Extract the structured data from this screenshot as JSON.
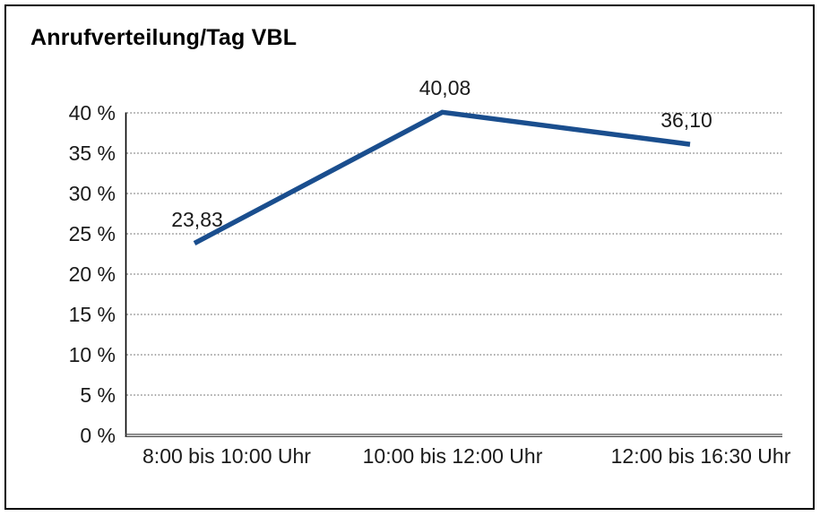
{
  "window": {
    "background_color": "#ffffff",
    "frame_border_color": "#000000"
  },
  "chart_data": {
    "type": "line",
    "title": "Anrufverteilung/Tag VBL",
    "categories": [
      "8:00 bis 10:00 Uhr",
      "10:00 bis 12:00 Uhr",
      "12:00 bis 16:30 Uhr"
    ],
    "series": [
      {
        "name": "Anrufverteilung/Tag VBL",
        "values": [
          23.83,
          40.08,
          36.1
        ],
        "color": "#1a4e8e"
      }
    ],
    "value_labels": [
      "23,83",
      "40,08",
      "36,10"
    ],
    "xlabel": "",
    "ylabel": "",
    "ylim": [
      0,
      40
    ],
    "ytick_step": 5,
    "ytick_labels": [
      "0 %",
      "5 %",
      "10 %",
      "15 %",
      "20 %",
      "25 %",
      "30 %",
      "35 %",
      "40 %"
    ],
    "grid": "horizontal-dotted",
    "legend": "none"
  },
  "styles": {
    "line_color": "#1a4e8e",
    "grid_color": "#767676",
    "axis_color": "#000000",
    "baseline_color": "#4d4d4d",
    "text_color": "#1a1a1a"
  }
}
